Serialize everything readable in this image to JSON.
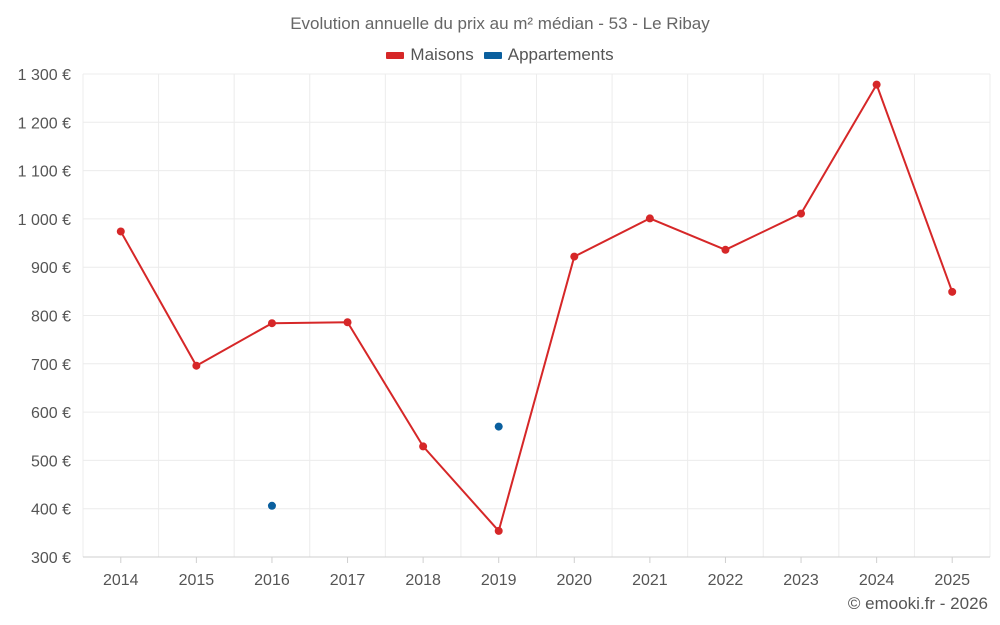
{
  "chart_data": {
    "type": "line",
    "title": "Evolution annuelle du prix au m² médian - 53 - Le Ribay",
    "categories": [
      "2014",
      "2015",
      "2016",
      "2017",
      "2018",
      "2019",
      "2020",
      "2021",
      "2022",
      "2023",
      "2024",
      "2025"
    ],
    "ylim": [
      300,
      1300
    ],
    "yticks": [
      300,
      400,
      500,
      600,
      700,
      800,
      900,
      1000,
      1100,
      1200,
      1300
    ],
    "ytick_labels": [
      "300 €",
      "400 €",
      "500 €",
      "600 €",
      "700 €",
      "800 €",
      "900 €",
      "1 000 €",
      "1 100 €",
      "1 200 €",
      "1 300 €"
    ],
    "grid": true,
    "legend_position": "top-center",
    "series": [
      {
        "name": "Maisons",
        "color": "#d62728",
        "style": "line",
        "values": [
          974,
          696,
          784,
          786,
          529,
          354,
          922,
          1001,
          936,
          1011,
          1278,
          849
        ]
      },
      {
        "name": "Appartements",
        "color": "#0a5f9e",
        "style": "points",
        "values": [
          null,
          null,
          406,
          null,
          null,
          570,
          null,
          null,
          null,
          null,
          null,
          null
        ]
      }
    ]
  },
  "credit": "© emooki.fr - 2026"
}
